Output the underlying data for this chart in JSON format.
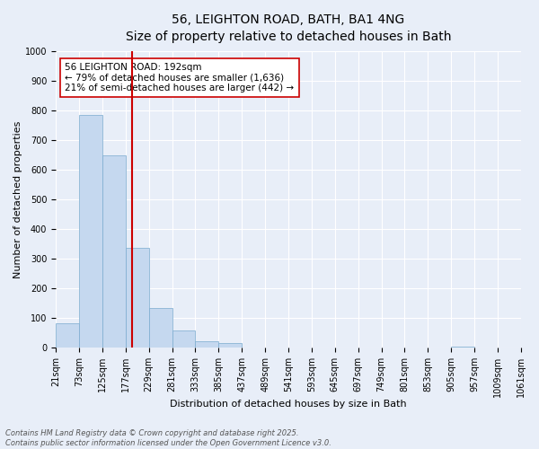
{
  "title_line1": "56, LEIGHTON ROAD, BATH, BA1 4NG",
  "title_line2": "Size of property relative to detached houses in Bath",
  "xlabel": "Distribution of detached houses by size in Bath",
  "ylabel": "Number of detached properties",
  "bin_labels": [
    "21sqm",
    "73sqm",
    "125sqm",
    "177sqm",
    "229sqm",
    "281sqm",
    "333sqm",
    "385sqm",
    "437sqm",
    "489sqm",
    "541sqm",
    "593sqm",
    "645sqm",
    "697sqm",
    "749sqm",
    "801sqm",
    "853sqm",
    "905sqm",
    "957sqm",
    "1009sqm",
    "1061sqm"
  ],
  "bar_heights": [
    83,
    783,
    648,
    335,
    135,
    58,
    22,
    15,
    0,
    0,
    0,
    0,
    0,
    0,
    0,
    0,
    0,
    5,
    0,
    0
  ],
  "bar_color": "#c5d8ef",
  "bar_edge_color": "#7aabcf",
  "vline_position": 3.08,
  "vline_color": "#cc0000",
  "annotation_text": "56 LEIGHTON ROAD: 192sqm\n← 79% of detached houses are smaller (1,636)\n21% of semi-detached houses are larger (442) →",
  "annotation_box_facecolor": "#ffffff",
  "annotation_box_edgecolor": "#cc0000",
  "ylim": [
    0,
    1000
  ],
  "yticks": [
    0,
    100,
    200,
    300,
    400,
    500,
    600,
    700,
    800,
    900,
    1000
  ],
  "background_color": "#e8eef8",
  "grid_color": "#ffffff",
  "footer_line1": "Contains HM Land Registry data © Crown copyright and database right 2025.",
  "footer_line2": "Contains public sector information licensed under the Open Government Licence v3.0.",
  "title_fontsize": 10,
  "subtitle_fontsize": 9,
  "axis_label_fontsize": 8,
  "tick_fontsize": 7,
  "annotation_fontsize": 7.5,
  "footer_fontsize": 6
}
